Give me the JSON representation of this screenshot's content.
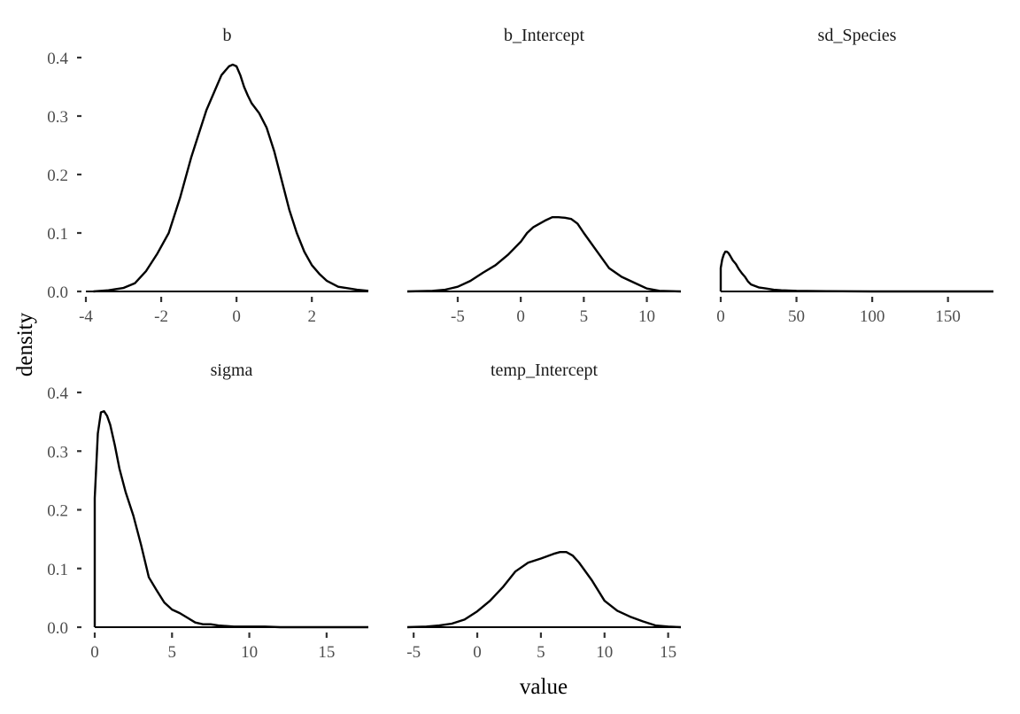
{
  "chart_data": {
    "type": "line",
    "xlabel": "value",
    "ylabel": "density",
    "facets": [
      {
        "title": "b",
        "xlim": [
          -4,
          3.5
        ],
        "ylim": [
          0,
          0.4
        ],
        "xticks": [
          -4,
          -2,
          0,
          2
        ],
        "xtick_labels": [
          "-4",
          "-2",
          "0",
          "2"
        ],
        "yticks": [
          0,
          0.1,
          0.2,
          0.3,
          0.4
        ],
        "ytick_labels": [
          "0.0",
          "0.1",
          "0.2",
          "0.3",
          "0.4"
        ],
        "x": [
          -3.8,
          -3.4,
          -3.0,
          -2.7,
          -2.4,
          -2.1,
          -1.8,
          -1.5,
          -1.2,
          -1.0,
          -0.8,
          -0.6,
          -0.4,
          -0.2,
          -0.1,
          0.0,
          0.1,
          0.2,
          0.3,
          0.4,
          0.6,
          0.8,
          1.0,
          1.2,
          1.4,
          1.6,
          1.8,
          2.0,
          2.2,
          2.4,
          2.7,
          3.0,
          3.2,
          3.5
        ],
        "y": [
          0.0,
          0.002,
          0.006,
          0.014,
          0.035,
          0.065,
          0.1,
          0.16,
          0.23,
          0.27,
          0.31,
          0.34,
          0.37,
          0.385,
          0.388,
          0.385,
          0.37,
          0.35,
          0.335,
          0.322,
          0.305,
          0.28,
          0.24,
          0.19,
          0.14,
          0.1,
          0.068,
          0.045,
          0.03,
          0.018,
          0.008,
          0.005,
          0.003,
          0.001
        ]
      },
      {
        "title": "b_Intercept",
        "xlim": [
          -9,
          12.7
        ],
        "ylim": [
          0,
          0.4
        ],
        "xticks": [
          -5,
          0,
          5,
          10
        ],
        "xtick_labels": [
          "-5",
          "0",
          "5",
          "10"
        ],
        "x": [
          -9,
          -7,
          -6,
          -5,
          -4,
          -3,
          -2,
          -1,
          0,
          0.5,
          1,
          1.5,
          2,
          2.5,
          3,
          3.5,
          4,
          4.5,
          5,
          6,
          7,
          8,
          9,
          10,
          11,
          12.7
        ],
        "y": [
          0.0,
          0.001,
          0.003,
          0.008,
          0.018,
          0.032,
          0.045,
          0.063,
          0.085,
          0.1,
          0.11,
          0.116,
          0.122,
          0.127,
          0.127,
          0.126,
          0.124,
          0.116,
          0.1,
          0.07,
          0.04,
          0.025,
          0.015,
          0.005,
          0.001,
          0.0
        ]
      },
      {
        "title": "sd_Species",
        "xlim": [
          0,
          180
        ],
        "ylim": [
          0,
          0.4
        ],
        "xticks": [
          0,
          50,
          100,
          150
        ],
        "xtick_labels": [
          "0",
          "50",
          "100",
          "150"
        ],
        "x": [
          0,
          0,
          1,
          2,
          3,
          4,
          5,
          6,
          8,
          10,
          12,
          14,
          16,
          18,
          20,
          25,
          30,
          35,
          40,
          50,
          70,
          100,
          180
        ],
        "y": [
          0.0,
          0.04,
          0.055,
          0.063,
          0.068,
          0.068,
          0.066,
          0.062,
          0.053,
          0.047,
          0.038,
          0.031,
          0.025,
          0.017,
          0.012,
          0.007,
          0.005,
          0.003,
          0.002,
          0.001,
          0.0005,
          0.0,
          0.0
        ]
      },
      {
        "title": "sigma",
        "xlim": [
          0,
          17.7
        ],
        "ylim": [
          0,
          0.4
        ],
        "xticks": [
          0,
          5,
          10,
          15
        ],
        "xtick_labels": [
          "0",
          "5",
          "10",
          "15"
        ],
        "yticks": [
          0,
          0.1,
          0.2,
          0.3,
          0.4
        ],
        "ytick_labels": [
          "0.0",
          "0.1",
          "0.2",
          "0.3",
          "0.4"
        ],
        "x": [
          0,
          0,
          0.2,
          0.4,
          0.6,
          0.8,
          1.0,
          1.3,
          1.6,
          2.0,
          2.5,
          3.0,
          3.5,
          4.0,
          4.5,
          5.0,
          5.5,
          6.0,
          6.5,
          7.0,
          7.5,
          8.0,
          9.0,
          10.0,
          11.0,
          12.0,
          17.7
        ],
        "y": [
          0.0,
          0.22,
          0.33,
          0.366,
          0.368,
          0.36,
          0.345,
          0.31,
          0.27,
          0.23,
          0.19,
          0.14,
          0.085,
          0.063,
          0.042,
          0.03,
          0.024,
          0.016,
          0.008,
          0.005,
          0.005,
          0.003,
          0.001,
          0.001,
          0.001,
          0.0,
          0.0
        ]
      },
      {
        "title": "temp_Intercept",
        "xlim": [
          -5.5,
          16
        ],
        "ylim": [
          0,
          0.4
        ],
        "xticks": [
          -5,
          0,
          5,
          10,
          15
        ],
        "xtick_labels": [
          "-5",
          "0",
          "5",
          "10",
          "15"
        ],
        "x": [
          -5.5,
          -4,
          -3,
          -2,
          -1,
          0,
          1,
          2,
          3,
          4,
          5,
          6,
          6.5,
          7,
          7.5,
          8,
          9,
          10,
          11,
          12,
          13,
          14,
          15,
          16
        ],
        "y": [
          0.0,
          0.001,
          0.003,
          0.006,
          0.013,
          0.027,
          0.045,
          0.068,
          0.095,
          0.11,
          0.117,
          0.125,
          0.128,
          0.128,
          0.122,
          0.11,
          0.08,
          0.045,
          0.028,
          0.018,
          0.01,
          0.003,
          0.001,
          0.0
        ]
      }
    ]
  }
}
